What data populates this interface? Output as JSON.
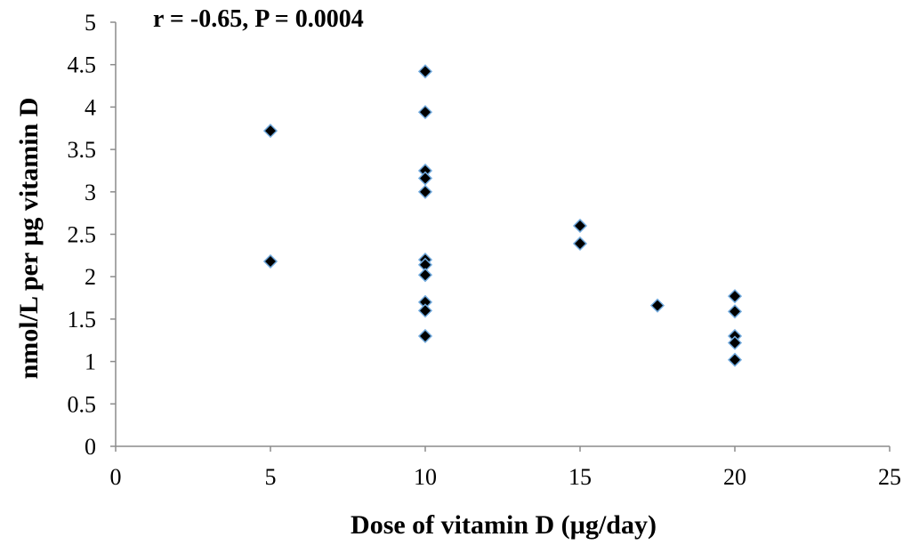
{
  "chart_data": {
    "type": "scatter",
    "annotation": "r = -0.65, P = 0.0004",
    "xlabel": "Dose of vitamin D (µg/day)",
    "ylabel": "nmol/L per µg vitamin D",
    "xlim": [
      0,
      25
    ],
    "ylim": [
      0,
      5
    ],
    "x_ticks": [
      "0",
      "5",
      "10",
      "15",
      "20",
      "25"
    ],
    "y_ticks": [
      "0",
      "0.5",
      "1",
      "1.5",
      "2",
      "2.5",
      "3",
      "3.5",
      "4",
      "4.5",
      "5"
    ],
    "grid": false,
    "legend": "none",
    "marker": "diamond",
    "marker_fill": "#000000",
    "marker_edge": "#6fa8dc",
    "points": [
      {
        "x": 5,
        "y": 3.72
      },
      {
        "x": 5,
        "y": 2.18
      },
      {
        "x": 10,
        "y": 4.42
      },
      {
        "x": 10,
        "y": 3.94
      },
      {
        "x": 10,
        "y": 3.25
      },
      {
        "x": 10,
        "y": 3.16
      },
      {
        "x": 10,
        "y": 3.0
      },
      {
        "x": 10,
        "y": 2.2
      },
      {
        "x": 10,
        "y": 2.14
      },
      {
        "x": 10,
        "y": 2.02
      },
      {
        "x": 10,
        "y": 1.7
      },
      {
        "x": 10,
        "y": 1.6
      },
      {
        "x": 10,
        "y": 1.3
      },
      {
        "x": 15,
        "y": 2.6
      },
      {
        "x": 15,
        "y": 2.39
      },
      {
        "x": 17.5,
        "y": 1.66
      },
      {
        "x": 20,
        "y": 1.77
      },
      {
        "x": 20,
        "y": 1.59
      },
      {
        "x": 20,
        "y": 1.3
      },
      {
        "x": 20,
        "y": 1.22
      },
      {
        "x": 20,
        "y": 1.02
      }
    ]
  }
}
